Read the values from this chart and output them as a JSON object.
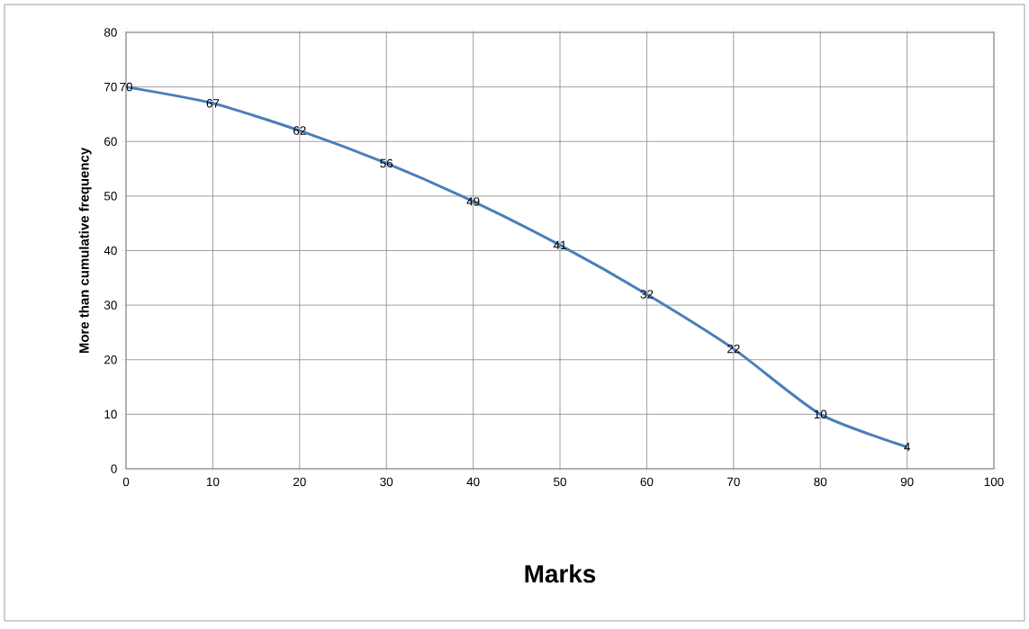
{
  "chart_data": {
    "type": "line",
    "xlabel": "Marks",
    "ylabel": "More than cumulative frequency",
    "x": [
      0,
      10,
      20,
      30,
      40,
      50,
      60,
      70,
      80,
      90
    ],
    "series": [
      {
        "color": "#4a7ebb",
        "values": [
          70,
          67,
          62,
          56,
          49,
          41,
          32,
          22,
          10,
          4
        ]
      }
    ],
    "xlim": [
      0,
      100
    ],
    "xticks": [
      0,
      10,
      20,
      30,
      40,
      50,
      60,
      70,
      80,
      90,
      100
    ],
    "ylim": [
      0,
      80
    ],
    "yticks": [
      0,
      10,
      20,
      30,
      40,
      50,
      60,
      70,
      80
    ],
    "grid": true,
    "marker": "none",
    "line_style": "solid",
    "data_labels": true
  }
}
